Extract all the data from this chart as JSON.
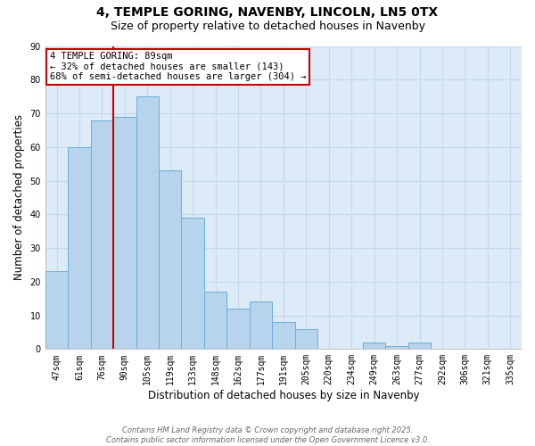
{
  "title1": "4, TEMPLE GORING, NAVENBY, LINCOLN, LN5 0TX",
  "title2": "Size of property relative to detached houses in Navenby",
  "xlabel": "Distribution of detached houses by size in Navenby",
  "ylabel": "Number of detached properties",
  "categories": [
    "47sqm",
    "61sqm",
    "76sqm",
    "90sqm",
    "105sqm",
    "119sqm",
    "133sqm",
    "148sqm",
    "162sqm",
    "177sqm",
    "191sqm",
    "205sqm",
    "220sqm",
    "234sqm",
    "249sqm",
    "263sqm",
    "277sqm",
    "292sqm",
    "306sqm",
    "321sqm",
    "335sqm"
  ],
  "values": [
    23,
    60,
    68,
    69,
    75,
    53,
    39,
    17,
    12,
    14,
    8,
    6,
    0,
    0,
    2,
    1,
    2,
    0,
    0,
    0,
    0
  ],
  "bar_color": "#b8d4ec",
  "bar_edge_color": "#6aaed6",
  "red_line_x": 2.5,
  "annotation_text": "4 TEMPLE GORING: 89sqm\n← 32% of detached houses are smaller (143)\n68% of semi-detached houses are larger (304) →",
  "annotation_box_color": "#ffffff",
  "annotation_box_edge_color": "#cc0000",
  "red_line_color": "#cc0000",
  "ylim": [
    0,
    90
  ],
  "yticks": [
    0,
    10,
    20,
    30,
    40,
    50,
    60,
    70,
    80,
    90
  ],
  "grid_color": "#c5d8ec",
  "background_color": "#ddeaf7",
  "footnote": "Contains HM Land Registry data © Crown copyright and database right 2025.\nContains public sector information licensed under the Open Government Licence v3.0.",
  "title_fontsize": 10,
  "subtitle_fontsize": 9,
  "tick_fontsize": 7,
  "label_fontsize": 8.5,
  "annot_fontsize": 7.5
}
